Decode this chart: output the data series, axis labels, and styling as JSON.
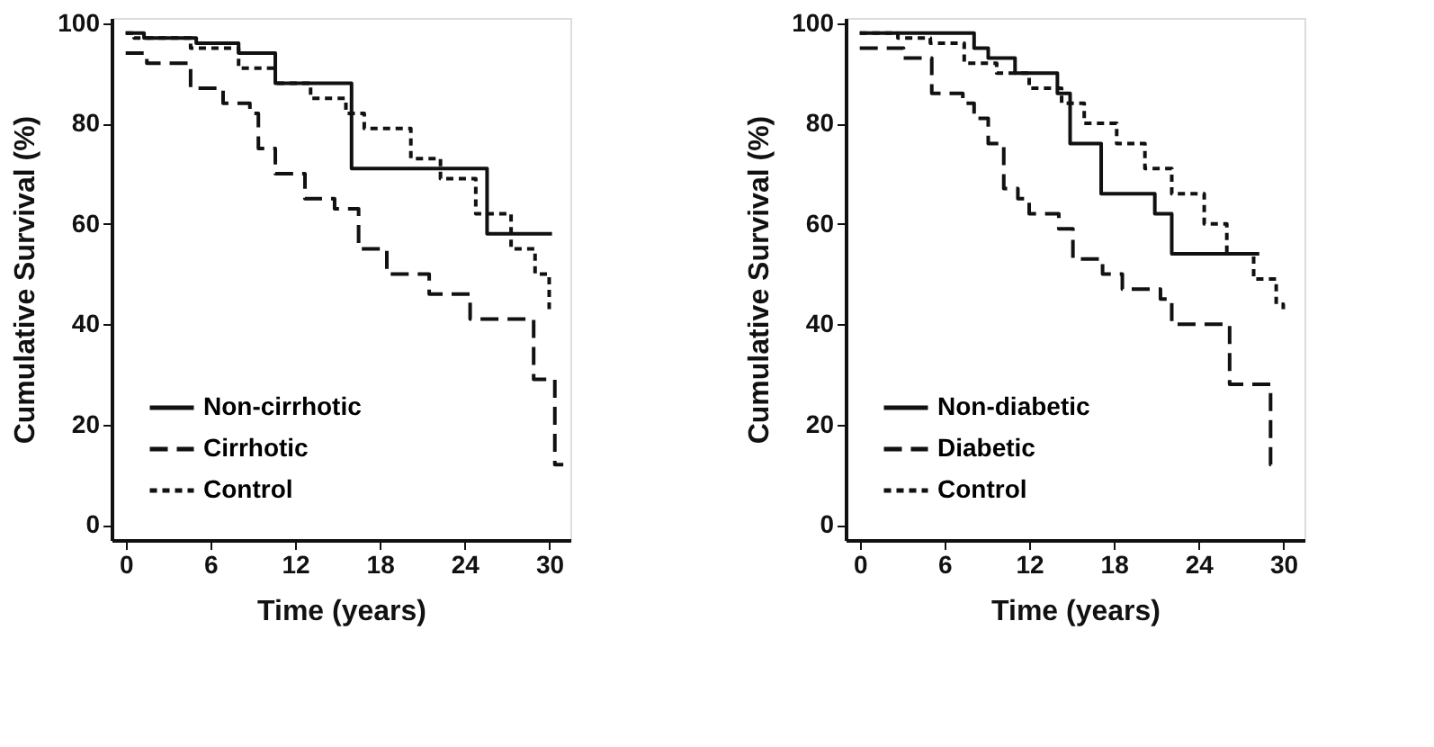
{
  "chart_data": [
    {
      "type": "step",
      "xlabel": "Time (years)",
      "ylabel": "Cumulative Survival (%)",
      "xlim": [
        -1,
        31.5
      ],
      "ylim": [
        -3,
        101
      ],
      "xticks": [
        0,
        6,
        12,
        18,
        24,
        30
      ],
      "yticks": [
        0,
        20,
        40,
        60,
        80,
        100
      ],
      "grid": false,
      "legend": "bottom left",
      "marker": "none",
      "series": [
        {
          "name": "Non-cirrhotic",
          "color": "#111111",
          "line_style": "solid",
          "x": [
            0,
            1.3,
            5,
            8,
            10.6,
            16,
            25.6,
            30.2
          ],
          "values": [
            98,
            97,
            96,
            94,
            88,
            71,
            58,
            58
          ]
        },
        {
          "name": "Cirrhotic",
          "color": "#111111",
          "line_style": "dashed",
          "x": [
            0,
            1.5,
            4.6,
            6.9,
            8.8,
            9.4,
            10.6,
            12.7,
            14.8,
            16.5,
            18.5,
            21.5,
            24.4,
            28.9,
            30.4,
            31
          ],
          "values": [
            94,
            92,
            87,
            84,
            82,
            75,
            70,
            65,
            63,
            55,
            50,
            46,
            41,
            29,
            12,
            12
          ]
        },
        {
          "name": "Control",
          "color": "#111111",
          "line_style": "dotted",
          "x": [
            0,
            0.6,
            4.6,
            8,
            10.6,
            13.1,
            15.6,
            16.9,
            20.2,
            22.3,
            24.8,
            27.3,
            29,
            30
          ],
          "values": [
            98,
            97,
            95,
            91,
            88,
            85,
            82,
            79,
            73,
            69,
            62,
            55,
            50,
            43
          ]
        }
      ]
    },
    {
      "type": "step",
      "xlabel": "Time (years)",
      "ylabel": "Cumulative Survival (%)",
      "xlim": [
        -1,
        31.5
      ],
      "ylim": [
        -3,
        101
      ],
      "xticks": [
        0,
        6,
        12,
        18,
        24,
        30
      ],
      "yticks": [
        0,
        20,
        40,
        60,
        80,
        100
      ],
      "grid": false,
      "legend": "bottom left",
      "marker": "none",
      "series": [
        {
          "name": "Non-diabetic",
          "color": "#111111",
          "line_style": "solid",
          "x": [
            0,
            8.1,
            9.1,
            11,
            14,
            14.9,
            17.1,
            20.9,
            22.1,
            28.3
          ],
          "values": [
            98,
            95,
            93,
            90,
            86,
            76,
            66,
            62,
            54,
            54
          ]
        },
        {
          "name": "Diabetic",
          "color": "#111111",
          "line_style": "dashed",
          "x": [
            0,
            3.1,
            5.1,
            7.3,
            8.1,
            9.1,
            10.2,
            11.2,
            12,
            14.1,
            15.1,
            17.2,
            18.6,
            21.3,
            22.1,
            26.2,
            29.1,
            29.6
          ],
          "values": [
            95,
            93,
            86,
            84,
            81,
            76,
            67,
            65,
            62,
            59,
            53,
            50,
            47,
            45,
            40,
            28,
            12,
            12
          ]
        },
        {
          "name": "Control",
          "color": "#111111",
          "line_style": "dotted",
          "x": [
            0,
            2.7,
            5,
            7.4,
            9.7,
            12,
            14.3,
            15.9,
            18.2,
            20.2,
            22.1,
            24.4,
            26,
            27.9,
            29.5,
            30
          ],
          "values": [
            98,
            97,
            96,
            92,
            90,
            87,
            84,
            80,
            76,
            71,
            66,
            60,
            54,
            49,
            44,
            43
          ]
        }
      ]
    }
  ]
}
